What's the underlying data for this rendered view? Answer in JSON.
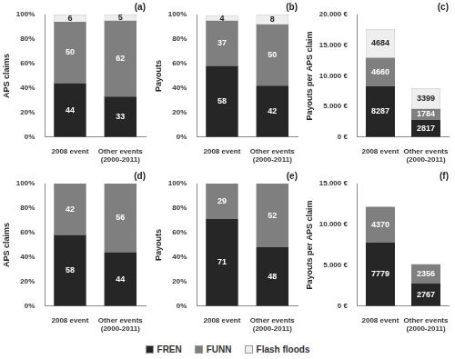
{
  "chart_data": [
    {
      "type": "bar",
      "title": "(a)",
      "ylabel": "APS claims",
      "stacked": true,
      "data_labels": true,
      "grid": false,
      "legend": "bottom",
      "categories": [
        "2008 event",
        "Other events (2000-2011)"
      ],
      "series": [
        {
          "name": "FREN",
          "color": "#262626",
          "values": [
            44,
            33
          ]
        },
        {
          "name": "FUNN",
          "color": "#7f7f7f",
          "values": [
            50,
            62
          ]
        },
        {
          "name": "Flash floods",
          "color": "#eeeeee",
          "values": [
            6,
            5
          ]
        }
      ],
      "ylim": [
        0,
        100
      ],
      "yticks": [
        {
          "value": 0,
          "label": "0%"
        },
        {
          "value": 20,
          "label": "20%"
        },
        {
          "value": 40,
          "label": "40%"
        },
        {
          "value": 60,
          "label": "60%"
        },
        {
          "value": 80,
          "label": "80%"
        },
        {
          "value": 100,
          "label": "100%"
        }
      ]
    },
    {
      "type": "bar",
      "title": "(b)",
      "ylabel": "Payouts",
      "stacked": true,
      "data_labels": true,
      "grid": false,
      "legend": "bottom",
      "categories": [
        "2008 event",
        "Other events (2000-2011)"
      ],
      "series": [
        {
          "name": "FREN",
          "color": "#262626",
          "values": [
            58,
            42
          ]
        },
        {
          "name": "FUNN",
          "color": "#7f7f7f",
          "values": [
            37,
            50
          ]
        },
        {
          "name": "Flash floods",
          "color": "#eeeeee",
          "values": [
            4,
            8
          ]
        }
      ],
      "ylim": [
        0,
        100
      ],
      "yticks": [
        {
          "value": 0,
          "label": "0%"
        },
        {
          "value": 20,
          "label": "20%"
        },
        {
          "value": 40,
          "label": "40%"
        },
        {
          "value": 60,
          "label": "60%"
        },
        {
          "value": 80,
          "label": "80%"
        },
        {
          "value": 100,
          "label": "100%"
        }
      ]
    },
    {
      "type": "bar",
      "title": "(c)",
      "ylabel": "Payouts per APS claim",
      "stacked": true,
      "data_labels": true,
      "grid": false,
      "legend": "bottom",
      "categories": [
        "2008 event",
        "Other events (2000-2011)"
      ],
      "series": [
        {
          "name": "FREN",
          "color": "#262626",
          "values": [
            8287,
            2817
          ]
        },
        {
          "name": "FUNN",
          "color": "#7f7f7f",
          "values": [
            4660,
            1784
          ]
        },
        {
          "name": "Flash floods",
          "color": "#eeeeee",
          "values": [
            4684,
            3399
          ]
        }
      ],
      "ylim": [
        0,
        20000
      ],
      "yticks": [
        {
          "value": 0,
          "label": "0 €"
        },
        {
          "value": 5000,
          "label": "5.000 €"
        },
        {
          "value": 10000,
          "label": "10.000 €"
        },
        {
          "value": 15000,
          "label": "15.000 €"
        },
        {
          "value": 20000,
          "label": "20.000 €"
        }
      ]
    },
    {
      "type": "bar",
      "title": "(d)",
      "ylabel": "APS claims",
      "stacked": true,
      "data_labels": true,
      "grid": false,
      "legend": "bottom",
      "categories": [
        "2008 event",
        "Other events (2000-2011)"
      ],
      "series": [
        {
          "name": "FREN",
          "color": "#262626",
          "values": [
            58,
            44
          ]
        },
        {
          "name": "FUNN",
          "color": "#7f7f7f",
          "values": [
            42,
            56
          ]
        }
      ],
      "ylim": [
        0,
        100
      ],
      "yticks": [
        {
          "value": 0,
          "label": "0%"
        },
        {
          "value": 20,
          "label": "20%"
        },
        {
          "value": 40,
          "label": "40%"
        },
        {
          "value": 60,
          "label": "60%"
        },
        {
          "value": 80,
          "label": "80%"
        },
        {
          "value": 100,
          "label": "100%"
        }
      ]
    },
    {
      "type": "bar",
      "title": "(e)",
      "ylabel": "Payouts",
      "stacked": true,
      "data_labels": true,
      "grid": false,
      "legend": "bottom",
      "categories": [
        "2008 event",
        "Other events (2000-2011)"
      ],
      "series": [
        {
          "name": "FREN",
          "color": "#262626",
          "values": [
            71,
            48
          ]
        },
        {
          "name": "FUNN",
          "color": "#7f7f7f",
          "values": [
            29,
            52
          ]
        }
      ],
      "ylim": [
        0,
        100
      ],
      "yticks": [
        {
          "value": 0,
          "label": "0%"
        },
        {
          "value": 20,
          "label": "20%"
        },
        {
          "value": 40,
          "label": "40%"
        },
        {
          "value": 60,
          "label": "60%"
        },
        {
          "value": 80,
          "label": "80%"
        },
        {
          "value": 100,
          "label": "100%"
        }
      ]
    },
    {
      "type": "bar",
      "title": "(f)",
      "ylabel": "Payouts per APS claim",
      "stacked": true,
      "data_labels": true,
      "grid": false,
      "legend": "bottom",
      "categories": [
        "2008 event",
        "Other events (2000-2011)"
      ],
      "series": [
        {
          "name": "FREN",
          "color": "#262626",
          "values": [
            7779,
            2767
          ]
        },
        {
          "name": "FUNN",
          "color": "#7f7f7f",
          "values": [
            4370,
            2356
          ]
        }
      ],
      "ylim": [
        0,
        15000
      ],
      "yticks": [
        {
          "value": 0,
          "label": "0 €"
        },
        {
          "value": 5000,
          "label": "5.000 €"
        },
        {
          "value": 10000,
          "label": "10.000 €"
        },
        {
          "value": 15000,
          "label": "15.000 €"
        }
      ]
    }
  ]
}
